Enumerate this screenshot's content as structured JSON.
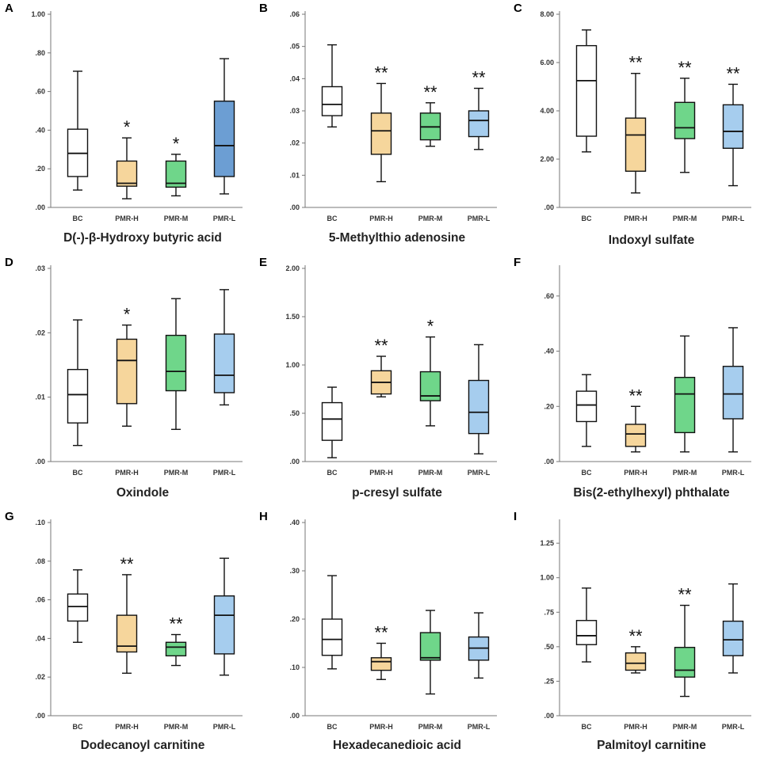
{
  "colors": {
    "BC": "#ffffff",
    "PMR-H": "#f6d69c",
    "PMR-M": "#6fd68a",
    "PMR-L": "#a6cdee",
    "PMR-L-A": "#6c9ed3"
  },
  "chart_data": [
    {
      "type": "box",
      "letter": "A",
      "title": "D(-)-β-Hydroxy butyric acid",
      "ylim": [
        0,
        1.0
      ],
      "yticks": [
        ".00",
        ".20",
        ".40",
        ".60",
        ".80",
        "1.00"
      ],
      "categories": [
        "BC",
        "PMR-H",
        "PMR-M",
        "PMR-L"
      ],
      "boxes": [
        {
          "min": 0.09,
          "q1": 0.16,
          "median": 0.28,
          "q3": 0.405,
          "max": 0.705,
          "sig": ""
        },
        {
          "min": 0.045,
          "q1": 0.11,
          "median": 0.125,
          "q3": 0.24,
          "max": 0.36,
          "sig": "*"
        },
        {
          "min": 0.06,
          "q1": 0.105,
          "median": 0.125,
          "q3": 0.24,
          "max": 0.275,
          "sig": "*"
        },
        {
          "min": 0.07,
          "q1": 0.16,
          "median": 0.32,
          "q3": 0.55,
          "max": 0.77,
          "sig": ""
        }
      ]
    },
    {
      "type": "box",
      "letter": "B",
      "title": "5-Methylthio adenosine",
      "ylim": [
        0,
        0.06
      ],
      "yticks": [
        ".00",
        ".01",
        ".02",
        ".03",
        ".04",
        ".05",
        ".06"
      ],
      "categories": [
        "BC",
        "PMR-H",
        "PMR-M",
        "PMR-L"
      ],
      "boxes": [
        {
          "min": 0.025,
          "q1": 0.0285,
          "median": 0.032,
          "q3": 0.0375,
          "max": 0.0505,
          "sig": ""
        },
        {
          "min": 0.008,
          "q1": 0.0165,
          "median": 0.0238,
          "q3": 0.0293,
          "max": 0.0385,
          "sig": "**"
        },
        {
          "min": 0.019,
          "q1": 0.021,
          "median": 0.025,
          "q3": 0.0293,
          "max": 0.0325,
          "sig": "**"
        },
        {
          "min": 0.018,
          "q1": 0.022,
          "median": 0.027,
          "q3": 0.03,
          "max": 0.037,
          "sig": "**"
        }
      ]
    },
    {
      "type": "box",
      "letter": "C",
      "title": "Indoxyl sulfate",
      "ylim": [
        0,
        8.0
      ],
      "yticks": [
        ".00",
        "2.00",
        "4.00",
        "6.00",
        "8.00"
      ],
      "categories": [
        "BC",
        "PMR-H",
        "PMR-M",
        "PMR-L"
      ],
      "boxes": [
        {
          "min": 2.3,
          "q1": 2.95,
          "median": 5.25,
          "q3": 6.7,
          "max": 7.35,
          "sig": ""
        },
        {
          "min": 0.6,
          "q1": 1.5,
          "median": 3.0,
          "q3": 3.7,
          "max": 5.55,
          "sig": "**"
        },
        {
          "min": 1.45,
          "q1": 2.85,
          "median": 3.3,
          "q3": 4.35,
          "max": 5.35,
          "sig": "**"
        },
        {
          "min": 0.9,
          "q1": 2.45,
          "median": 3.15,
          "q3": 4.25,
          "max": 5.1,
          "sig": "**"
        }
      ]
    },
    {
      "type": "box",
      "letter": "D",
      "title": "Oxindole",
      "ylim": [
        0,
        0.03
      ],
      "yticks": [
        ".00",
        ".01",
        ".02",
        ".03"
      ],
      "categories": [
        "BC",
        "PMR-H",
        "PMR-M",
        "PMR-L"
      ],
      "boxes": [
        {
          "min": 0.0025,
          "q1": 0.006,
          "median": 0.0104,
          "q3": 0.0143,
          "max": 0.022,
          "sig": ""
        },
        {
          "min": 0.0055,
          "q1": 0.009,
          "median": 0.0157,
          "q3": 0.019,
          "max": 0.0212,
          "sig": "*"
        },
        {
          "min": 0.005,
          "q1": 0.011,
          "median": 0.014,
          "q3": 0.0196,
          "max": 0.0253,
          "sig": ""
        },
        {
          "min": 0.0088,
          "q1": 0.0107,
          "median": 0.0134,
          "q3": 0.0198,
          "max": 0.0267,
          "sig": ""
        }
      ]
    },
    {
      "type": "box",
      "letter": "E",
      "title": "p-cresyl sulfate",
      "ylim": [
        0,
        2.0
      ],
      "yticks": [
        ".00",
        ".50",
        "1.00",
        "1.50",
        "2.00"
      ],
      "categories": [
        "BC",
        "PMR-H",
        "PMR-M",
        "PMR-L"
      ],
      "boxes": [
        {
          "min": 0.04,
          "q1": 0.22,
          "median": 0.44,
          "q3": 0.61,
          "max": 0.77,
          "sig": ""
        },
        {
          "min": 0.67,
          "q1": 0.7,
          "median": 0.82,
          "q3": 0.94,
          "max": 1.09,
          "sig": "**"
        },
        {
          "min": 0.37,
          "q1": 0.63,
          "median": 0.68,
          "q3": 0.93,
          "max": 1.29,
          "sig": "*"
        },
        {
          "min": 0.08,
          "q1": 0.29,
          "median": 0.51,
          "q3": 0.84,
          "max": 1.21,
          "sig": ""
        }
      ]
    },
    {
      "type": "box",
      "letter": "F",
      "title": "Bis(2-ethylhexyl) phthalate",
      "ylim": [
        0,
        0.7
      ],
      "yticks": [
        ".00",
        ".20",
        ".40",
        ".60"
      ],
      "categories": [
        "BC",
        "PMR-H",
        "PMR-M",
        "PMR-L"
      ],
      "boxes": [
        {
          "min": 0.055,
          "q1": 0.145,
          "median": 0.205,
          "q3": 0.255,
          "max": 0.315,
          "sig": ""
        },
        {
          "min": 0.035,
          "q1": 0.055,
          "median": 0.1,
          "q3": 0.135,
          "max": 0.2,
          "sig": "**"
        },
        {
          "min": 0.035,
          "q1": 0.105,
          "median": 0.245,
          "q3": 0.305,
          "max": 0.455,
          "sig": ""
        },
        {
          "min": 0.035,
          "q1": 0.155,
          "median": 0.245,
          "q3": 0.345,
          "max": 0.485,
          "sig": ""
        }
      ]
    },
    {
      "type": "box",
      "letter": "G",
      "title": "Dodecanoyl carnitine",
      "ylim": [
        0,
        0.1
      ],
      "yticks": [
        ".00",
        ".02",
        ".04",
        ".06",
        ".08",
        ".10"
      ],
      "categories": [
        "BC",
        "PMR-H",
        "PMR-M",
        "PMR-L"
      ],
      "boxes": [
        {
          "min": 0.038,
          "q1": 0.049,
          "median": 0.0565,
          "q3": 0.063,
          "max": 0.0755,
          "sig": ""
        },
        {
          "min": 0.022,
          "q1": 0.033,
          "median": 0.036,
          "q3": 0.052,
          "max": 0.073,
          "sig": "**"
        },
        {
          "min": 0.026,
          "q1": 0.031,
          "median": 0.0355,
          "q3": 0.038,
          "max": 0.042,
          "sig": "**"
        },
        {
          "min": 0.021,
          "q1": 0.032,
          "median": 0.052,
          "q3": 0.062,
          "max": 0.0815,
          "sig": ""
        }
      ]
    },
    {
      "type": "box",
      "letter": "H",
      "title": "Hexadecanedioic acid",
      "ylim": [
        0,
        0.4
      ],
      "yticks": [
        ".00",
        ".10",
        ".20",
        ".30",
        ".40"
      ],
      "categories": [
        "BC",
        "PMR-H",
        "PMR-M",
        "PMR-L"
      ],
      "boxes": [
        {
          "min": 0.097,
          "q1": 0.125,
          "median": 0.158,
          "q3": 0.2,
          "max": 0.29,
          "sig": ""
        },
        {
          "min": 0.075,
          "q1": 0.094,
          "median": 0.112,
          "q3": 0.12,
          "max": 0.15,
          "sig": "**"
        },
        {
          "min": 0.045,
          "q1": 0.115,
          "median": 0.12,
          "q3": 0.172,
          "max": 0.218,
          "sig": ""
        },
        {
          "min": 0.078,
          "q1": 0.115,
          "median": 0.14,
          "q3": 0.163,
          "max": 0.213,
          "sig": ""
        }
      ]
    },
    {
      "type": "box",
      "letter": "I",
      "title": "Palmitoyl carnitine",
      "ylim": [
        0,
        1.4
      ],
      "yticks": [
        ".00",
        ".25",
        ".50",
        ".75",
        "1.00",
        "1.25"
      ],
      "categories": [
        "BC",
        "PMR-H",
        "PMR-M",
        "PMR-L"
      ],
      "boxes": [
        {
          "min": 0.39,
          "q1": 0.515,
          "median": 0.58,
          "q3": 0.69,
          "max": 0.925,
          "sig": ""
        },
        {
          "min": 0.31,
          "q1": 0.33,
          "median": 0.38,
          "q3": 0.455,
          "max": 0.5,
          "sig": "**"
        },
        {
          "min": 0.14,
          "q1": 0.28,
          "median": 0.33,
          "q3": 0.495,
          "max": 0.8,
          "sig": "**"
        },
        {
          "min": 0.31,
          "q1": 0.435,
          "median": 0.55,
          "q3": 0.685,
          "max": 0.955,
          "sig": ""
        }
      ]
    }
  ]
}
